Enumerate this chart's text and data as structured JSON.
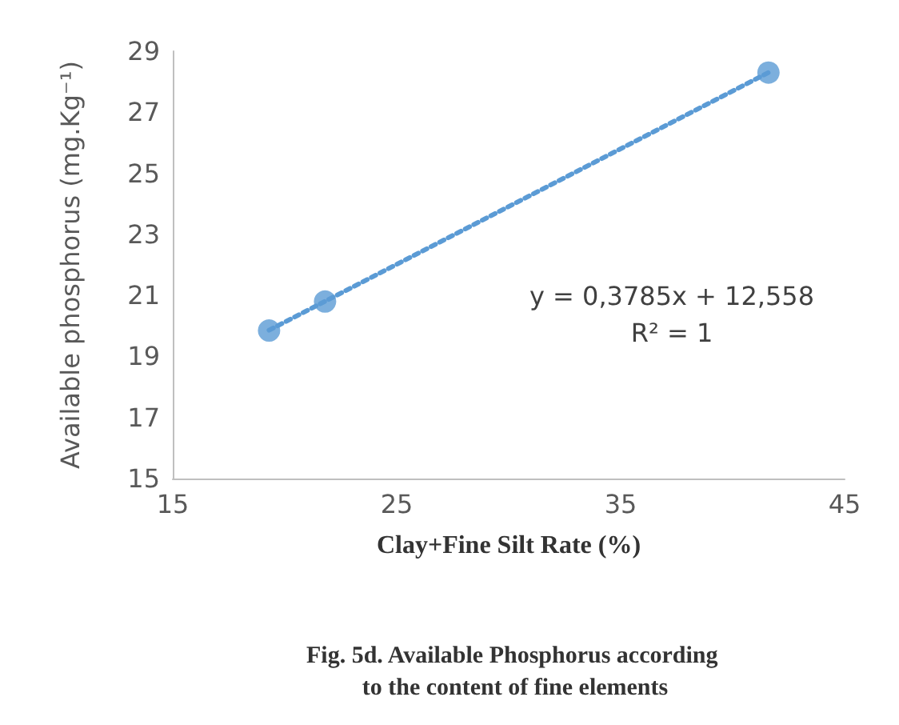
{
  "chart_data": {
    "type": "scatter",
    "xlabel": "Clay+Fine Silt Rate (%)",
    "ylabel": "Available phosphorus (mg.Kg⁻¹)",
    "annotations": [
      "y = 0,3785x + 12,558",
      "R² = 1",
      "Fig. 5d. Available Phosphorus according to the content of fine elements"
    ],
    "series": [
      {
        "color": "#5b9bd5",
        "x": [
          19.3,
          21.8,
          41.6
        ],
        "values": [
          19.85,
          20.8,
          28.3
        ],
        "marker": "circle"
      },
      {
        "type": "line",
        "color": "#5b9bd5",
        "x": [
          19.3,
          41.6
        ],
        "values": [
          19.86,
          28.3
        ],
        "line_style": "dotted",
        "marker": "none"
      }
    ],
    "xlim": [
      15,
      45
    ],
    "xticks": [
      15,
      25,
      35,
      45
    ],
    "ylim": [
      15,
      29
    ],
    "yticks": [
      15,
      17,
      19,
      21,
      23,
      25,
      27,
      29
    ],
    "grid": false
  }
}
